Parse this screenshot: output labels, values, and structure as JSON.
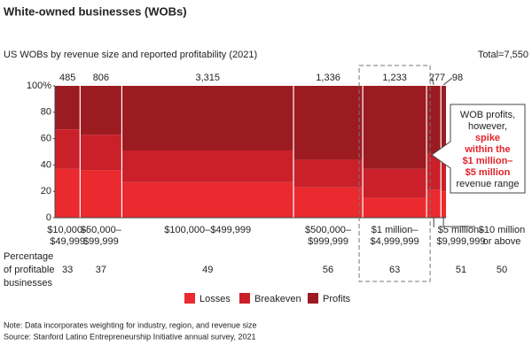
{
  "chart_data": {
    "type": "mekko",
    "title": "White-owned businesses (WOBs)",
    "subtitle": "US WOBs by revenue size and reported profitability (2021)",
    "total_label": "Total=7,550",
    "categories": [
      [
        "$10,000–",
        "$49,999"
      ],
      [
        "$50,000–",
        "$99,999"
      ],
      [
        "$100,000–$499,999"
      ],
      [
        "$500,000–",
        "$999,999"
      ],
      [
        "$1 million–",
        "$4,999,999"
      ],
      [
        "$5 million–",
        "$9,999,999"
      ],
      [
        "$10 million",
        "or above"
      ]
    ],
    "widths": [
      485,
      806,
      3315,
      1336,
      1233,
      277,
      98
    ],
    "width_labels": [
      "485",
      "806",
      "3,315",
      "1,336",
      "1,233",
      "277",
      "98"
    ],
    "series": [
      {
        "name": "Losses",
        "color": "#ea2a2e",
        "values": [
          37,
          36,
          27,
          23,
          15,
          21,
          20
        ]
      },
      {
        "name": "Breakeven",
        "color": "#c9202a",
        "values": [
          30,
          27,
          24,
          21,
          22,
          28,
          30
        ]
      },
      {
        "name": "Profits",
        "color": "#9c1b21",
        "values": [
          33,
          37,
          49,
          56,
          63,
          51,
          50
        ]
      }
    ],
    "row_label": [
      "Percentage",
      "of profitable",
      "businesses"
    ],
    "ylim": [
      0,
      100
    ],
    "yticks": [
      0,
      20,
      40,
      60,
      80,
      {
        "value": 100,
        "label": "100%"
      }
    ],
    "annotation": [
      "WOB profits,",
      "however,",
      "spike",
      "within the",
      "$1 million–",
      "$5 million",
      "revenue range"
    ],
    "notes": [
      "Note: Data incorporates weighting for industry, region, and revenue size",
      "Source: Stanford Latino Entrepreneurship Initiative annual survey, 2021"
    ]
  }
}
